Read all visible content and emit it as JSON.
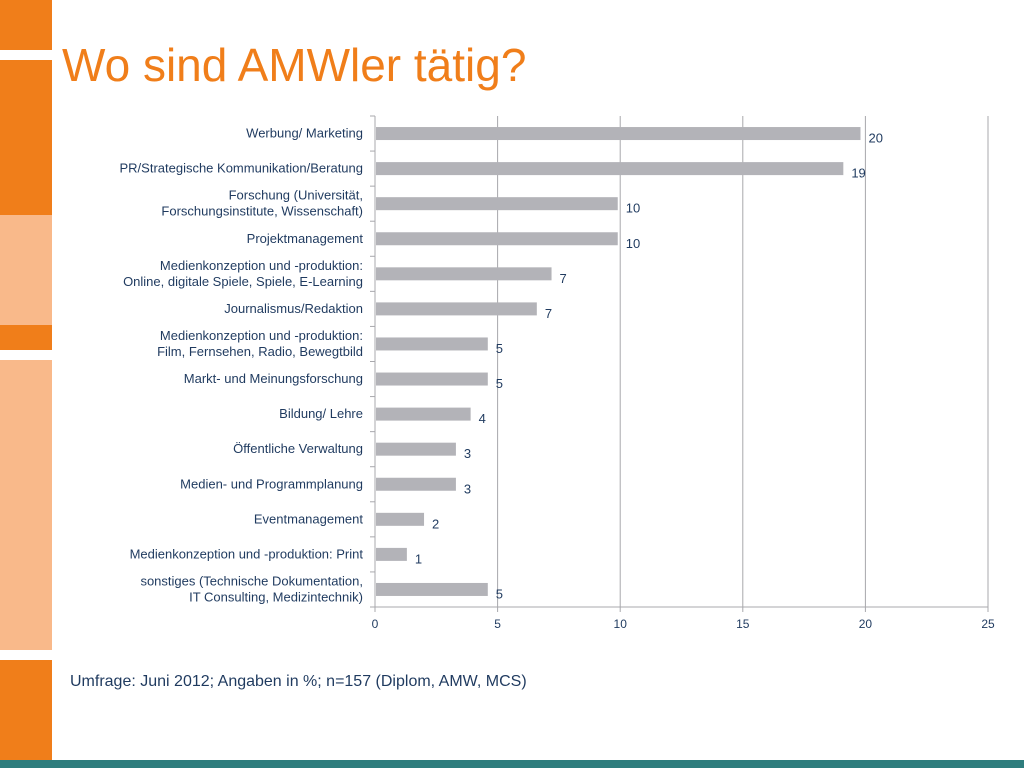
{
  "slide": {
    "title": "Wo sind AMWler tätig?",
    "footnote": "Umfrage: Juni 2012; Angaben in %; n=157 (Diplom, AMW, MCS)"
  },
  "colors": {
    "accent": "#f07e1a",
    "accent_light": "#f9b98a",
    "bar": "#b3b3b8",
    "text": "#1f3a5f",
    "grid": "#a8a8ac",
    "footer": "#2e7d7d"
  },
  "chart_data": {
    "type": "bar",
    "orientation": "horizontal",
    "categories": [
      [
        "Werbung/ Marketing"
      ],
      [
        "PR/Strategische Kommunikation/Beratung"
      ],
      [
        "Forschung (Universität,",
        "Forschungsinstitute, Wissenschaft)"
      ],
      [
        "Projektmanagement"
      ],
      [
        "Medienkonzeption und -produktion:",
        "Online, digitale Spiele, Spiele, E-Learning"
      ],
      [
        "Journalismus/Redaktion"
      ],
      [
        "Medienkonzeption und -produktion:",
        "Film, Fernsehen, Radio, Bewegtbild"
      ],
      [
        "Markt- und Meinungsforschung"
      ],
      [
        "Bildung/ Lehre"
      ],
      [
        "Öffentliche Verwaltung"
      ],
      [
        "Medien- und Programmplanung"
      ],
      [
        "Eventmanagement"
      ],
      [
        "Medienkonzeption und -produktion: Print"
      ],
      [
        "sonstiges (Technische Dokumentation,",
        "IT Consulting, Medizintechnik)"
      ]
    ],
    "values": [
      19.8,
      19.1,
      9.9,
      9.9,
      7.2,
      6.6,
      4.6,
      4.6,
      3.9,
      3.3,
      3.3,
      2.0,
      1.3,
      4.6
    ],
    "value_labels": [
      "20",
      "19",
      "10",
      "10",
      "7",
      "7",
      "5",
      "5",
      "4",
      "3",
      "3",
      "2",
      "1",
      "5"
    ],
    "xlim": [
      0,
      25
    ],
    "xticks": [
      0,
      5,
      10,
      15,
      20,
      25
    ],
    "grid": true,
    "legend": "none"
  }
}
